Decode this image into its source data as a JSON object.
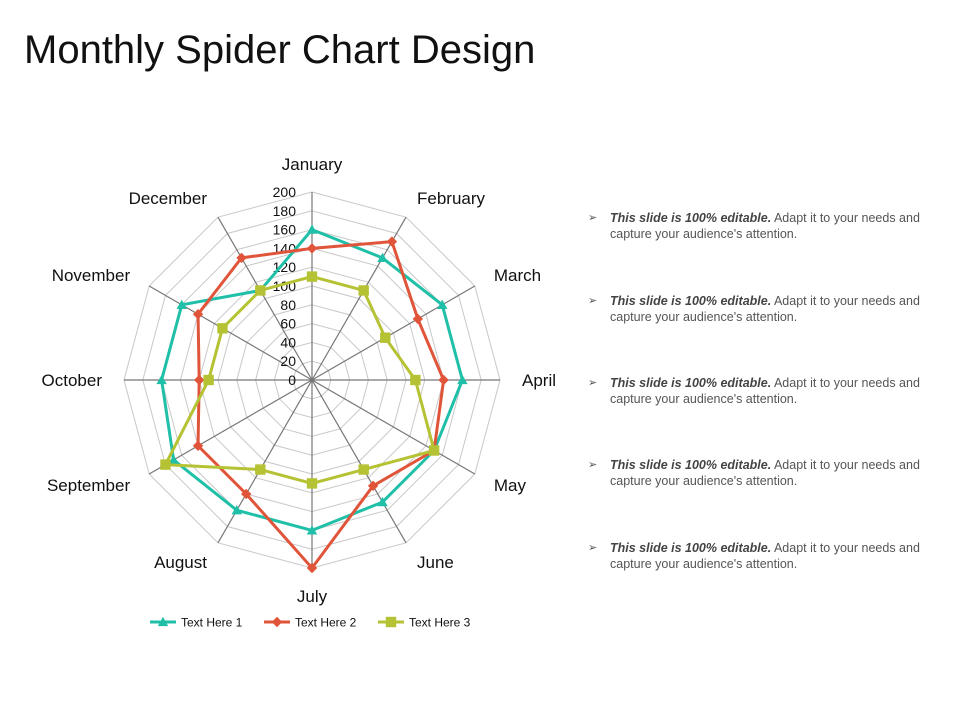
{
  "title": "Monthly Spider Chart Design",
  "colors": {
    "series1": "#20BFA8",
    "series2": "#E0553A",
    "series3": "#B5C233",
    "grid": "#c8c8c8",
    "spoke": "#777777"
  },
  "chart_data": {
    "type": "radar",
    "title": "",
    "categories": [
      "January",
      "February",
      "March",
      "April",
      "May",
      "June",
      "July",
      "August",
      "September",
      "October",
      "November",
      "December"
    ],
    "r_range": [
      0,
      200
    ],
    "r_ticks": [
      "0",
      "20",
      "40",
      "60",
      "80",
      "100",
      "120",
      "140",
      "160",
      "180",
      "200"
    ],
    "grid": true,
    "legend_position": "bottom",
    "series": [
      {
        "name": "Text Here 1",
        "marker": "triangle",
        "values": [
          160,
          150,
          160,
          160,
          150,
          150,
          160,
          160,
          170,
          160,
          160,
          110
        ]
      },
      {
        "name": "Text Here 2",
        "marker": "diamond",
        "values": [
          140,
          170,
          130,
          140,
          150,
          130,
          200,
          140,
          140,
          120,
          140,
          150
        ]
      },
      {
        "name": "Text Here 3",
        "marker": "square",
        "values": [
          110,
          110,
          90,
          110,
          150,
          110,
          110,
          110,
          180,
          110,
          110,
          110
        ]
      }
    ]
  },
  "notes": [
    {
      "bullet": "➢",
      "bold": "This slide is 100% editable.",
      "rest": " Adapt it to your needs and capture your audience's attention."
    },
    {
      "bullet": "➢",
      "bold": "This slide is 100% editable.",
      "rest": " Adapt it to your needs and capture your audience's attention."
    },
    {
      "bullet": "➢",
      "bold": "This slide is 100% editable.",
      "rest": " Adapt it to your needs and capture your audience's attention."
    },
    {
      "bullet": "➢",
      "bold": "This slide is 100% editable.",
      "rest": " Adapt it to your needs and capture your audience's attention."
    },
    {
      "bullet": "➢",
      "bold": "This slide is 100% editable.",
      "rest": " Adapt it to your needs and capture your audience's attention."
    }
  ]
}
